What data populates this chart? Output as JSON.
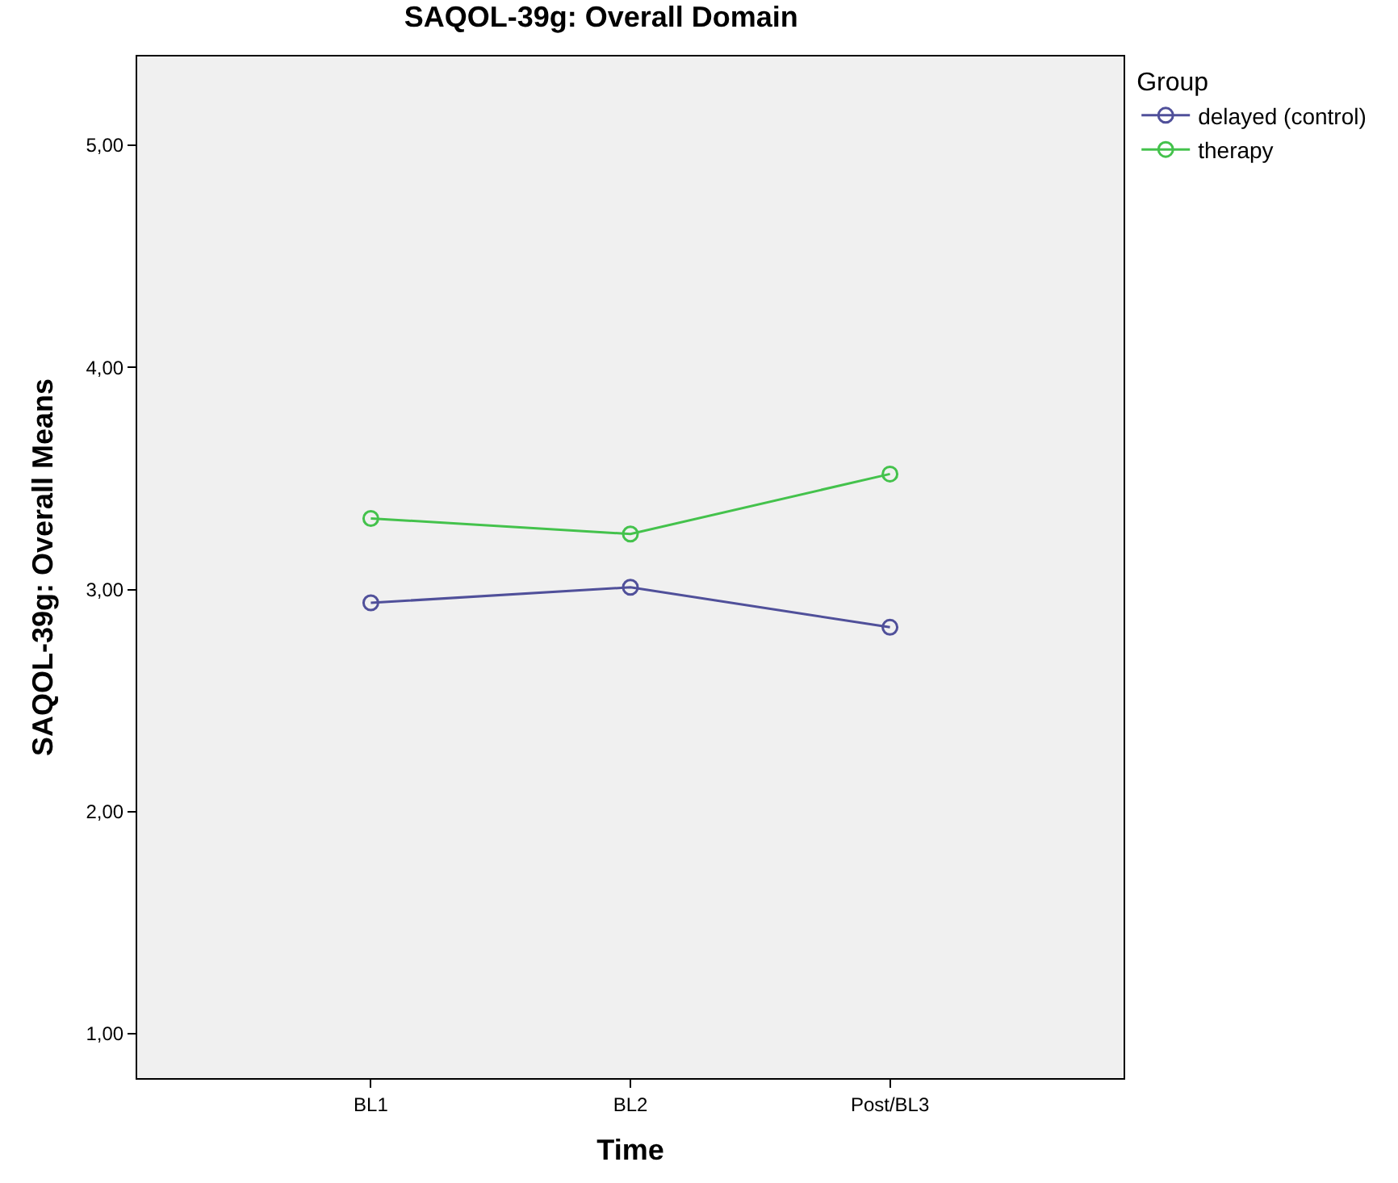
{
  "chart_data": {
    "type": "line",
    "title": "SAQOL-39g: Overall Domain",
    "xlabel": "Time",
    "ylabel": "SAQOL-39g: Overall Means",
    "legend_title": "Group",
    "categories": [
      "BL1",
      "BL2",
      "Post/BL3"
    ],
    "series": [
      {
        "name": "delayed (control)",
        "color": "#50509a",
        "values": [
          2.94,
          3.01,
          2.83
        ]
      },
      {
        "name": "therapy",
        "color": "#44c24c",
        "values": [
          3.32,
          3.25,
          3.52
        ]
      }
    ],
    "ylim": [
      0.8,
      5.4
    ],
    "yticks": [
      {
        "value": 1,
        "label": "1,00"
      },
      {
        "value": 2,
        "label": "2,00"
      },
      {
        "value": 3,
        "label": "3,00"
      },
      {
        "value": 4,
        "label": "4,00"
      },
      {
        "value": 5,
        "label": "5,00"
      }
    ],
    "grid": false,
    "legend": "top right",
    "marker": "circle",
    "line_style": "solid"
  }
}
